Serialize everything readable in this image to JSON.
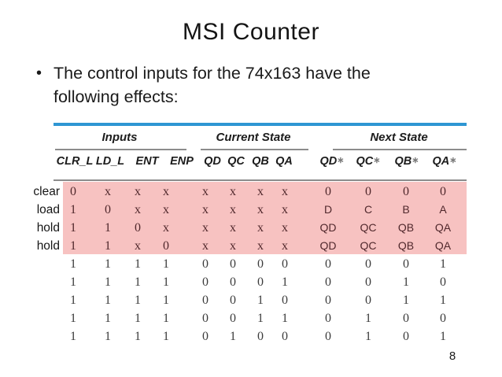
{
  "slide": {
    "title": "MSI Counter",
    "bullet_glyph": "•",
    "bullet": "The control inputs for the 74x163 have the following effects:",
    "page_number": "8"
  },
  "table": {
    "groups": [
      {
        "label": "Inputs"
      },
      {
        "label": "Current State"
      },
      {
        "label": "Next State"
      }
    ],
    "columns": [
      "CLR_L",
      "LD_L",
      "ENT",
      "ENP",
      "QD",
      "QC",
      "QB",
      "QA",
      "QD*",
      "QC*",
      "QB*",
      "QA*"
    ],
    "rows": [
      {
        "label": "clear",
        "highlight": true,
        "cells": [
          "0",
          "x",
          "x",
          "x",
          "x",
          "x",
          "x",
          "x",
          "0",
          "0",
          "0",
          "0"
        ]
      },
      {
        "label": "load",
        "highlight": true,
        "cells": [
          "1",
          "0",
          "x",
          "x",
          "x",
          "x",
          "x",
          "x",
          "D",
          "C",
          "B",
          "A"
        ]
      },
      {
        "label": "hold",
        "highlight": true,
        "cells": [
          "1",
          "1",
          "0",
          "x",
          "x",
          "x",
          "x",
          "x",
          "QD",
          "QC",
          "QB",
          "QA"
        ]
      },
      {
        "label": "hold",
        "highlight": true,
        "cells": [
          "1",
          "1",
          "x",
          "0",
          "x",
          "x",
          "x",
          "x",
          "QD",
          "QC",
          "QB",
          "QA"
        ]
      },
      {
        "label": "",
        "highlight": false,
        "cells": [
          "1",
          "1",
          "1",
          "1",
          "0",
          "0",
          "0",
          "0",
          "0",
          "0",
          "0",
          "1"
        ]
      },
      {
        "label": "",
        "highlight": false,
        "cells": [
          "1",
          "1",
          "1",
          "1",
          "0",
          "0",
          "0",
          "1",
          "0",
          "0",
          "1",
          "0"
        ]
      },
      {
        "label": "",
        "highlight": false,
        "cells": [
          "1",
          "1",
          "1",
          "1",
          "0",
          "0",
          "1",
          "0",
          "0",
          "0",
          "1",
          "1"
        ]
      },
      {
        "label": "",
        "highlight": false,
        "cells": [
          "1",
          "1",
          "1",
          "1",
          "0",
          "0",
          "1",
          "1",
          "0",
          "1",
          "0",
          "0"
        ]
      },
      {
        "label": "",
        "highlight": false,
        "cells": [
          "1",
          "1",
          "1",
          "1",
          "0",
          "1",
          "0",
          "0",
          "0",
          "1",
          "0",
          "1"
        ]
      }
    ],
    "colors": {
      "accent_blue": "#2e96d3",
      "rule_gray": "#8c8c8c",
      "highlight_pink": "#f7c2c1",
      "highlight_text": "#50282c",
      "body_text": "#3c3c3c",
      "header_text": "#1c1c1c"
    }
  }
}
